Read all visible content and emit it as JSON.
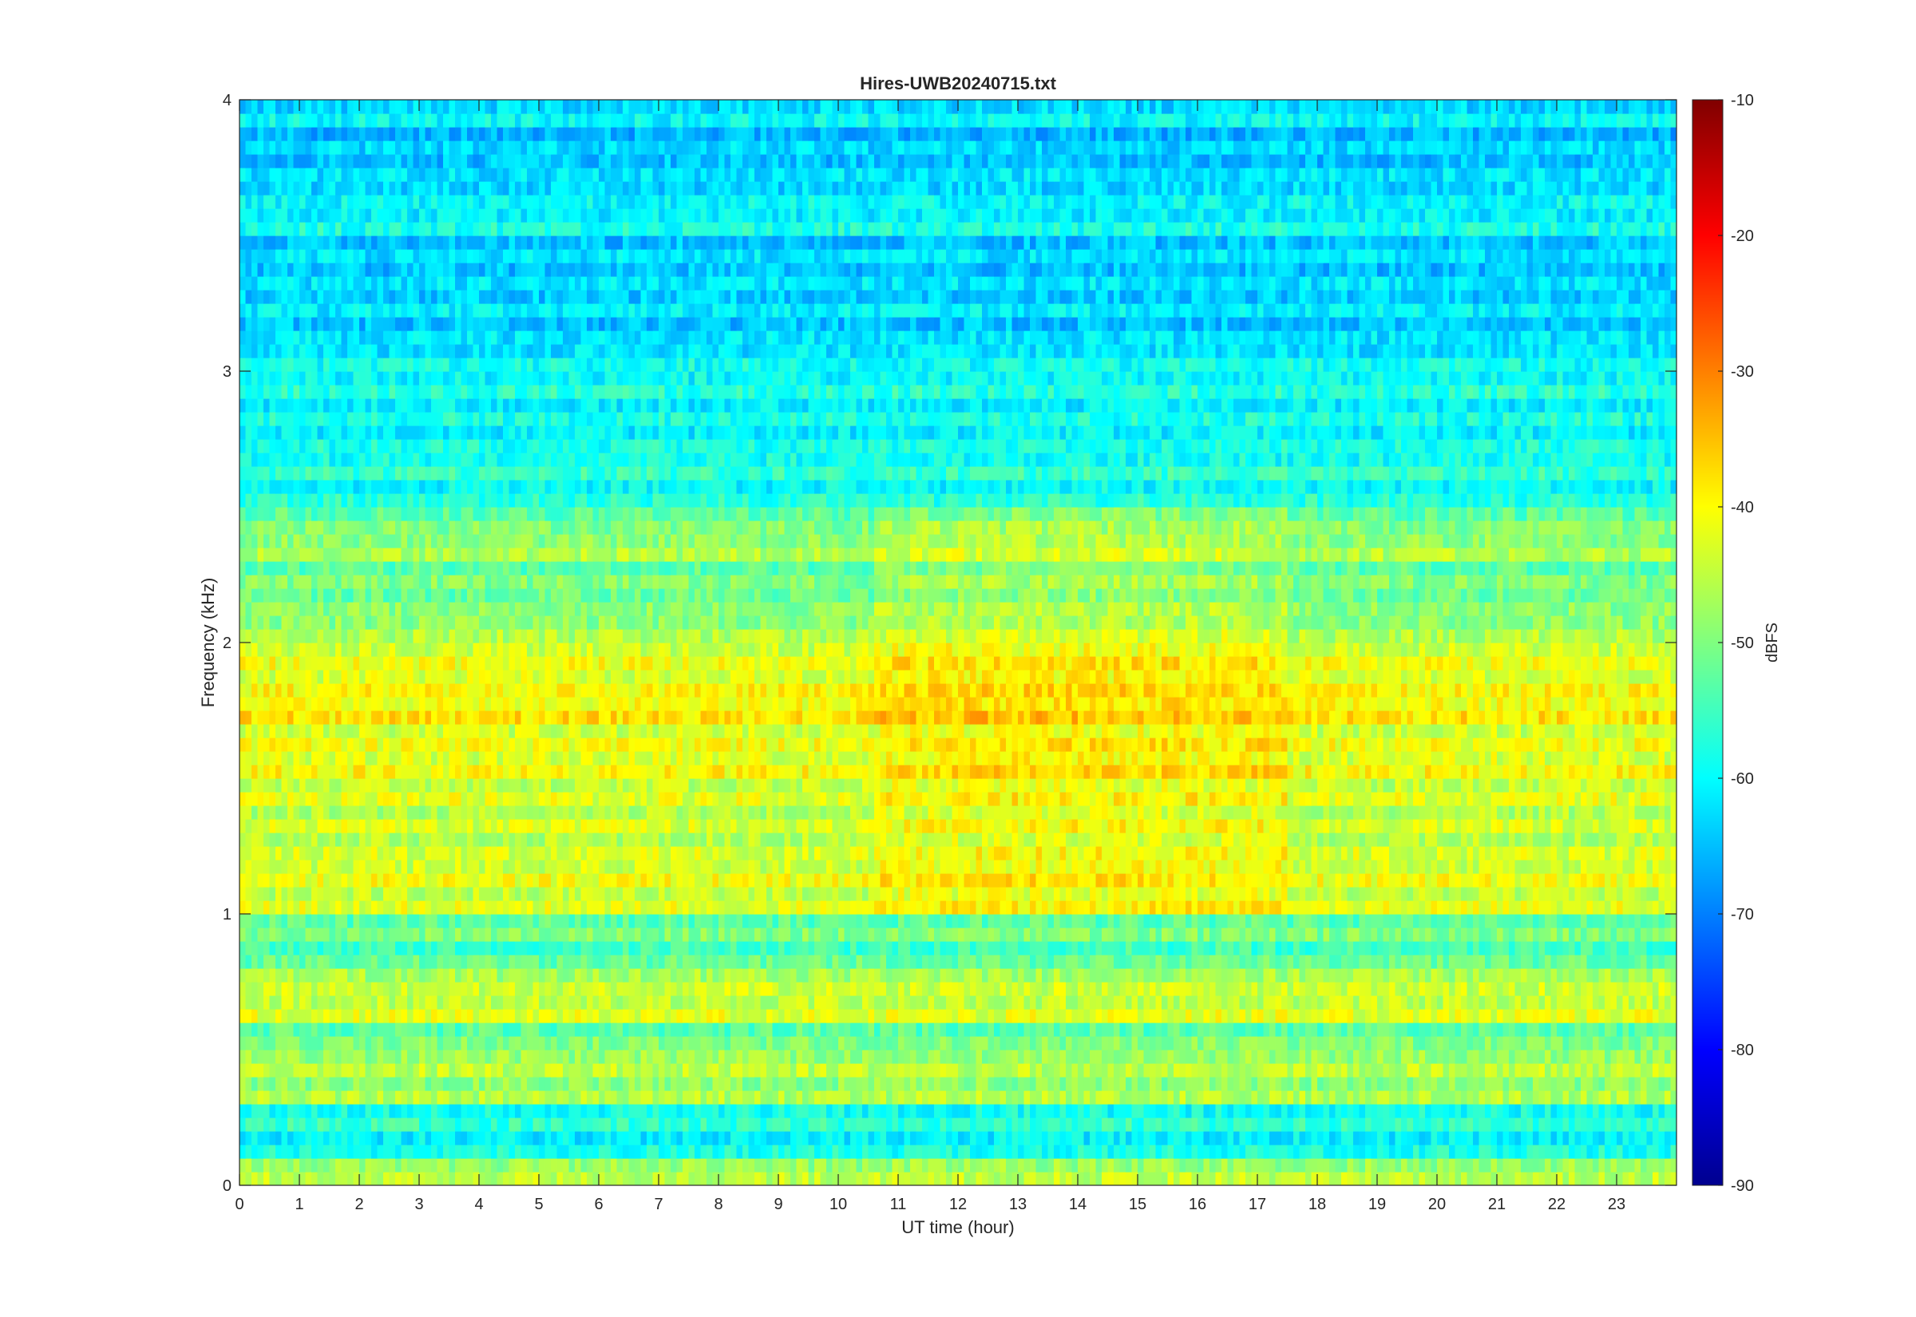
{
  "chart_data": {
    "type": "heatmap",
    "title": "Hires-UWB20240715.txt",
    "xlabel": "UT time (hour)",
    "ylabel": "Frequency (kHz)",
    "colorbar_label": "dBFS",
    "colormap": "jet",
    "xlim": [
      0,
      24
    ],
    "ylim": [
      0,
      4
    ],
    "clim": [
      -90,
      -10
    ],
    "xticks": [
      0,
      1,
      2,
      3,
      4,
      5,
      6,
      7,
      8,
      9,
      10,
      11,
      12,
      13,
      14,
      15,
      16,
      17,
      18,
      19,
      20,
      21,
      22,
      23
    ],
    "xtick_labels": [
      "0",
      "1",
      "2",
      "3",
      "4",
      "5",
      "6",
      "7",
      "8",
      "9",
      "10",
      "11",
      "12",
      "13",
      "14",
      "15",
      "16",
      "17",
      "18",
      "19",
      "20",
      "21",
      "22",
      "23"
    ],
    "yticks": [
      0,
      1,
      2,
      3,
      4
    ],
    "ytick_labels": [
      "0",
      "1",
      "2",
      "3",
      "4"
    ],
    "cticks": [
      -90,
      -80,
      -70,
      -60,
      -50,
      -40,
      -30,
      -20,
      -10
    ],
    "ctick_labels": [
      "-90",
      "-80",
      "-70",
      "-60",
      "-50",
      "-40",
      "-30",
      "-20",
      "-10"
    ],
    "frequency_bands_khz": [
      {
        "f": 0.05,
        "level": -45
      },
      {
        "f": 0.15,
        "level": -58
      },
      {
        "f": 0.25,
        "level": -56
      },
      {
        "f": 0.35,
        "level": -46
      },
      {
        "f": 0.45,
        "level": -45
      },
      {
        "f": 0.55,
        "level": -50
      },
      {
        "f": 0.65,
        "level": -42
      },
      {
        "f": 0.75,
        "level": -44
      },
      {
        "f": 0.85,
        "level": -52
      },
      {
        "f": 0.95,
        "level": -50
      },
      {
        "f": 1.05,
        "level": -42
      },
      {
        "f": 1.15,
        "level": -41
      },
      {
        "f": 1.25,
        "level": -43
      },
      {
        "f": 1.35,
        "level": -43
      },
      {
        "f": 1.45,
        "level": -42
      },
      {
        "f": 1.55,
        "level": -40
      },
      {
        "f": 1.65,
        "level": -41
      },
      {
        "f": 1.75,
        "level": -38
      },
      {
        "f": 1.85,
        "level": -40
      },
      {
        "f": 1.95,
        "level": -41
      },
      {
        "f": 2.05,
        "level": -46
      },
      {
        "f": 2.15,
        "level": -49
      },
      {
        "f": 2.25,
        "level": -50
      },
      {
        "f": 2.35,
        "level": -46
      },
      {
        "f": 2.45,
        "level": -50
      },
      {
        "f": 2.55,
        "level": -57
      },
      {
        "f": 2.65,
        "level": -56
      },
      {
        "f": 2.75,
        "level": -58
      },
      {
        "f": 2.85,
        "level": -58
      },
      {
        "f": 2.95,
        "level": -57
      },
      {
        "f": 3.05,
        "level": -59
      },
      {
        "f": 3.15,
        "level": -62
      },
      {
        "f": 3.25,
        "level": -61
      },
      {
        "f": 3.35,
        "level": -62
      },
      {
        "f": 3.45,
        "level": -62
      },
      {
        "f": 3.55,
        "level": -58
      },
      {
        "f": 3.65,
        "level": -60
      },
      {
        "f": 3.75,
        "level": -62
      },
      {
        "f": 3.85,
        "level": -63
      },
      {
        "f": 3.95,
        "level": -60
      }
    ]
  }
}
